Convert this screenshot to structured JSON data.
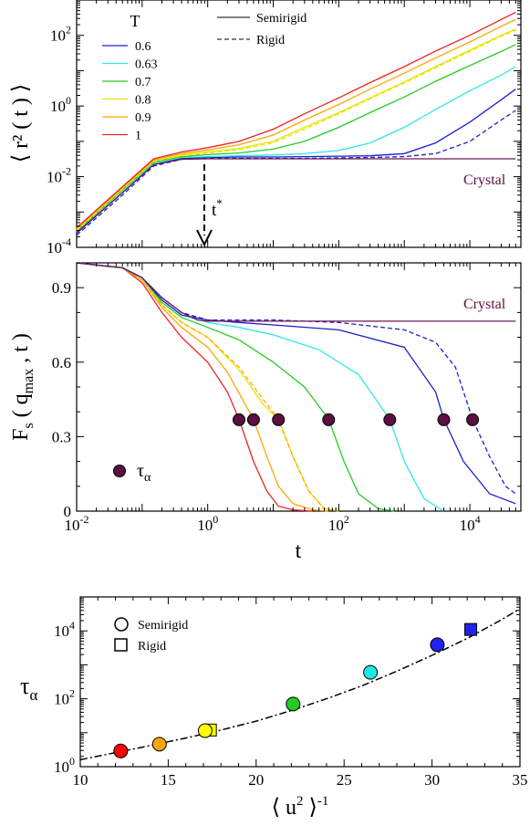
{
  "chart_data": [
    {
      "type": "line",
      "ylabel": "⟨ r² ( t ) ⟩",
      "xscale": "log",
      "yscale": "log",
      "xlim": [
        0.01,
        60000
      ],
      "ylim": [
        0.0001,
        1000
      ],
      "yticks": [
        {
          "value": 0.0001,
          "base": "10",
          "exp": "-4"
        },
        {
          "value": 0.01,
          "base": "10",
          "exp": "-2"
        },
        {
          "value": 1,
          "base": "10",
          "exp": "0"
        },
        {
          "value": 100,
          "base": "10",
          "exp": "2"
        }
      ],
      "legend": {
        "title": "T",
        "position": "top-left"
      },
      "style_legend": {
        "solid": "Semirigid",
        "dashed": "Rigid"
      },
      "crystal_label": "Crystal",
      "arrow_label": "t*",
      "arrow_label_base": "t",
      "arrow_label_sup": "*",
      "arrow_x": 1,
      "series": [
        {
          "name": "0.6",
          "color": "#1f1fcc",
          "style": "solid",
          "x": [
            0.01,
            0.05,
            0.15,
            0.4,
            1,
            3,
            10,
            30,
            100,
            300,
            1000,
            3000,
            10000,
            30000,
            50000
          ],
          "y": [
            0.00025,
            0.0035,
            0.022,
            0.033,
            0.035,
            0.036,
            0.036,
            0.037,
            0.038,
            0.039,
            0.045,
            0.09,
            0.35,
            1.5,
            3.0
          ]
        },
        {
          "name": "0.63",
          "color": "#33e6e6",
          "style": "solid",
          "x": [
            0.01,
            0.05,
            0.15,
            0.4,
            1,
            3,
            10,
            30,
            100,
            300,
            1000,
            3000,
            10000,
            30000,
            50000
          ],
          "y": [
            0.00028,
            0.004,
            0.024,
            0.035,
            0.037,
            0.039,
            0.041,
            0.045,
            0.055,
            0.09,
            0.25,
            0.8,
            2.7,
            7.5,
            13
          ]
        },
        {
          "name": "0.7",
          "color": "#22cc22",
          "style": "solid",
          "x": [
            0.01,
            0.05,
            0.15,
            0.4,
            1,
            3,
            10,
            30,
            100,
            300,
            1000,
            3000,
            10000,
            30000,
            50000
          ],
          "y": [
            0.0003,
            0.0043,
            0.026,
            0.037,
            0.042,
            0.047,
            0.06,
            0.1,
            0.25,
            0.65,
            1.8,
            5,
            14,
            35,
            55
          ]
        },
        {
          "name": "0.8",
          "color": "#e6e600",
          "style": "solid",
          "x": [
            0.01,
            0.05,
            0.15,
            0.4,
            1,
            3,
            10,
            30,
            100,
            300,
            1000,
            3000,
            10000,
            30000,
            50000
          ],
          "y": [
            0.00032,
            0.0046,
            0.028,
            0.041,
            0.05,
            0.063,
            0.1,
            0.25,
            0.65,
            1.7,
            4.8,
            13,
            38,
            100,
            150
          ]
        },
        {
          "name": "0.9",
          "color": "#ffa500",
          "style": "solid",
          "x": [
            0.01,
            0.05,
            0.15,
            0.4,
            1,
            3,
            10,
            30,
            100,
            300,
            1000,
            3000,
            10000,
            30000,
            50000
          ],
          "y": [
            0.00034,
            0.0049,
            0.03,
            0.045,
            0.057,
            0.08,
            0.15,
            0.4,
            1.1,
            3,
            8.5,
            23,
            65,
            180,
            280
          ]
        },
        {
          "name": "1",
          "color": "#ee2222",
          "style": "solid",
          "x": [
            0.01,
            0.05,
            0.15,
            0.4,
            1,
            3,
            10,
            30,
            100,
            300,
            1000,
            3000,
            10000,
            30000,
            50000
          ],
          "y": [
            0.00036,
            0.0052,
            0.032,
            0.05,
            0.066,
            0.1,
            0.22,
            0.6,
            1.7,
            4.6,
            13,
            36,
            100,
            280,
            450
          ]
        },
        {
          "name": "",
          "color": "#1f1fcc",
          "style": "dashed",
          "x": [
            0.01,
            0.05,
            0.15,
            0.4,
            1,
            3,
            10,
            30,
            100,
            300,
            1000,
            3000,
            10000,
            30000,
            50000
          ],
          "y": [
            0.00022,
            0.003,
            0.02,
            0.031,
            0.033,
            0.033,
            0.033,
            0.033,
            0.034,
            0.035,
            0.037,
            0.045,
            0.1,
            0.4,
            0.75
          ]
        },
        {
          "name": "",
          "color": "#e6e600",
          "style": "dashed",
          "x": [
            0.01,
            0.05,
            0.15,
            0.4,
            1,
            3,
            10,
            30,
            100,
            300,
            1000,
            3000,
            10000,
            30000,
            50000
          ],
          "y": [
            0.0003,
            0.0044,
            0.027,
            0.039,
            0.047,
            0.058,
            0.09,
            0.22,
            0.6,
            1.6,
            4.5,
            12,
            35,
            95,
            140
          ]
        },
        {
          "name": "Crystal",
          "color": "#6b1a50",
          "style": "solid",
          "x": [
            0.01,
            0.05,
            0.15,
            0.4,
            1,
            10,
            100,
            1000,
            10000,
            50000
          ],
          "y": [
            0.00026,
            0.0035,
            0.022,
            0.031,
            0.032,
            0.032,
            0.032,
            0.032,
            0.032,
            0.032
          ]
        }
      ]
    },
    {
      "type": "line",
      "ylabel": "Fs ( qmax , t )",
      "ylabel_parts": {
        "F": "F",
        "s": "s",
        "q": "( q",
        "max": "max",
        "rest": ", t )"
      },
      "xlabel": "t",
      "xscale": "log",
      "yscale": "linear",
      "xlim": [
        0.01,
        60000
      ],
      "ylim": [
        0,
        1
      ],
      "xticks": [
        {
          "value": 0.01,
          "base": "10",
          "exp": "-2"
        },
        {
          "value": 1,
          "base": "10",
          "exp": "0"
        },
        {
          "value": 100,
          "base": "10",
          "exp": "2"
        },
        {
          "value": 10000,
          "base": "10",
          "exp": "4"
        }
      ],
      "yticks": [
        {
          "value": 0,
          "label": "0"
        },
        {
          "value": 0.3,
          "label": "0.3"
        },
        {
          "value": 0.6,
          "label": "0.6"
        },
        {
          "value": 0.9,
          "label": "0.9"
        }
      ],
      "crystal_label": "Crystal",
      "marker_legend": "τα",
      "marker_legend_base": "τ",
      "marker_legend_sub": "α",
      "marker_color": "#5a1040",
      "tau_points": {
        "x": [
          3,
          5,
          12,
          70,
          600,
          4000,
          11000
        ],
        "y": [
          0.368,
          0.368,
          0.368,
          0.368,
          0.368,
          0.368,
          0.368
        ]
      },
      "series": [
        {
          "name": "1",
          "color": "#ee2222",
          "style": "solid",
          "x": [
            0.01,
            0.05,
            0.1,
            0.2,
            0.4,
            1,
            2,
            3,
            5,
            8,
            12,
            20,
            40
          ],
          "y": [
            1.0,
            0.98,
            0.92,
            0.8,
            0.7,
            0.6,
            0.48,
            0.37,
            0.2,
            0.08,
            0.02,
            0.005,
            0.0
          ]
        },
        {
          "name": "0.9",
          "color": "#ffa500",
          "style": "solid",
          "x": [
            0.01,
            0.05,
            0.1,
            0.2,
            0.4,
            1,
            2,
            5,
            8,
            12,
            20,
            40,
            70
          ],
          "y": [
            1.0,
            0.98,
            0.93,
            0.82,
            0.74,
            0.66,
            0.56,
            0.37,
            0.22,
            0.1,
            0.03,
            0.005,
            0.0
          ]
        },
        {
          "name": "0.8",
          "color": "#e6e600",
          "style": "solid",
          "x": [
            0.01,
            0.05,
            0.1,
            0.2,
            0.4,
            1,
            3,
            7,
            12,
            20,
            35,
            60,
            100
          ],
          "y": [
            1.0,
            0.98,
            0.93,
            0.83,
            0.76,
            0.7,
            0.57,
            0.43,
            0.37,
            0.22,
            0.08,
            0.01,
            0.0
          ]
        },
        {
          "name": "",
          "color": "#ffa500",
          "style": "dashed",
          "x": [
            0.01,
            0.05,
            0.1,
            0.2,
            0.4,
            1,
            3,
            7,
            12,
            20,
            35,
            60,
            100
          ],
          "y": [
            1.0,
            0.98,
            0.93,
            0.83,
            0.76,
            0.7,
            0.58,
            0.45,
            0.37,
            0.22,
            0.08,
            0.01,
            0.0
          ]
        },
        {
          "name": "0.7",
          "color": "#22cc22",
          "style": "solid",
          "x": [
            0.01,
            0.05,
            0.1,
            0.2,
            0.4,
            1,
            3,
            10,
            30,
            70,
            120,
            200,
            400,
            700
          ],
          "y": [
            1.0,
            0.98,
            0.94,
            0.84,
            0.78,
            0.74,
            0.69,
            0.6,
            0.5,
            0.37,
            0.2,
            0.07,
            0.01,
            0.0
          ]
        },
        {
          "name": "0.63",
          "color": "#33e6e6",
          "style": "solid",
          "x": [
            0.01,
            0.05,
            0.1,
            0.2,
            0.4,
            1,
            3,
            10,
            50,
            200,
            600,
            1000,
            2000,
            4000
          ],
          "y": [
            1.0,
            0.98,
            0.94,
            0.85,
            0.79,
            0.76,
            0.74,
            0.71,
            0.65,
            0.55,
            0.37,
            0.2,
            0.05,
            0.0
          ]
        },
        {
          "name": "0.6",
          "color": "#1f1fcc",
          "style": "solid",
          "x": [
            0.01,
            0.05,
            0.1,
            0.2,
            0.4,
            1,
            3,
            10,
            100,
            1000,
            3000,
            4000,
            8000,
            20000,
            50000
          ],
          "y": [
            1.0,
            0.98,
            0.94,
            0.85,
            0.79,
            0.77,
            0.76,
            0.75,
            0.73,
            0.66,
            0.48,
            0.37,
            0.2,
            0.07,
            0.03
          ]
        },
        {
          "name": "",
          "color": "#1f1fcc",
          "style": "dashed",
          "x": [
            0.01,
            0.05,
            0.1,
            0.2,
            0.4,
            1,
            10,
            100,
            1000,
            3000,
            6000,
            11000,
            20000,
            35000,
            50000
          ],
          "y": [
            1.0,
            0.98,
            0.94,
            0.86,
            0.8,
            0.77,
            0.77,
            0.76,
            0.73,
            0.68,
            0.58,
            0.37,
            0.22,
            0.1,
            0.07
          ]
        },
        {
          "name": "Crystal",
          "color": "#6b1a50",
          "style": "solid",
          "x": [
            0.01,
            0.05,
            0.1,
            0.2,
            0.4,
            0.7,
            1,
            10,
            100,
            1000,
            10000,
            50000
          ],
          "y": [
            1.0,
            0.98,
            0.94,
            0.86,
            0.8,
            0.77,
            0.765,
            0.765,
            0.765,
            0.765,
            0.765,
            0.765
          ]
        }
      ]
    },
    {
      "type": "scatter",
      "ylabel": "τα",
      "ylabel_base": "τ",
      "ylabel_sub": "α",
      "xlabel": "⟨ u² ⟩⁻¹",
      "xlabel_parts": {
        "open": "⟨ u",
        "sq": "2",
        "close": " ⟩",
        "inv": "-1"
      },
      "yscale": "log",
      "xlim": [
        10,
        35
      ],
      "ylim": [
        1,
        100000
      ],
      "xticks": [
        {
          "value": 10,
          "label": "10"
        },
        {
          "value": 15,
          "label": "15"
        },
        {
          "value": 20,
          "label": "20"
        },
        {
          "value": 25,
          "label": "25"
        },
        {
          "value": 30,
          "label": "30"
        },
        {
          "value": 35,
          "label": "35"
        }
      ],
      "yticks": [
        {
          "value": 1,
          "base": "10",
          "exp": "0"
        },
        {
          "value": 100,
          "base": "10",
          "exp": "2"
        },
        {
          "value": 10000,
          "base": "10",
          "exp": "4"
        }
      ],
      "legend": {
        "position": "top-left",
        "circle": "Semirigid",
        "square": "Rigid"
      },
      "points": [
        {
          "x": 12.3,
          "y": 2.9,
          "color": "#ff0000",
          "marker": "circle"
        },
        {
          "x": 14.5,
          "y": 4.6,
          "color": "#ffa500",
          "marker": "circle"
        },
        {
          "x": 17.1,
          "y": 11.5,
          "color": "#ffff00",
          "marker": "circle"
        },
        {
          "x": 22.1,
          "y": 70,
          "color": "#22cc22",
          "marker": "circle"
        },
        {
          "x": 26.5,
          "y": 600,
          "color": "#22e6e6",
          "marker": "circle"
        },
        {
          "x": 30.3,
          "y": 3900,
          "color": "#2222ee",
          "marker": "circle"
        },
        {
          "x": 17.4,
          "y": 12,
          "color": "#ffff00",
          "marker": "square"
        },
        {
          "x": 32.2,
          "y": 11000,
          "color": "#2222ee",
          "marker": "square"
        }
      ],
      "fit_curve": {
        "style": "dash-dot",
        "x": [
          10,
          12,
          14,
          16,
          18,
          20,
          22,
          24,
          26,
          28,
          30,
          32,
          34,
          35
        ],
        "y": [
          1.6,
          2.6,
          4.2,
          7,
          12,
          22,
          45,
          100,
          240,
          650,
          1900,
          6000,
          22000,
          45000
        ]
      }
    }
  ]
}
